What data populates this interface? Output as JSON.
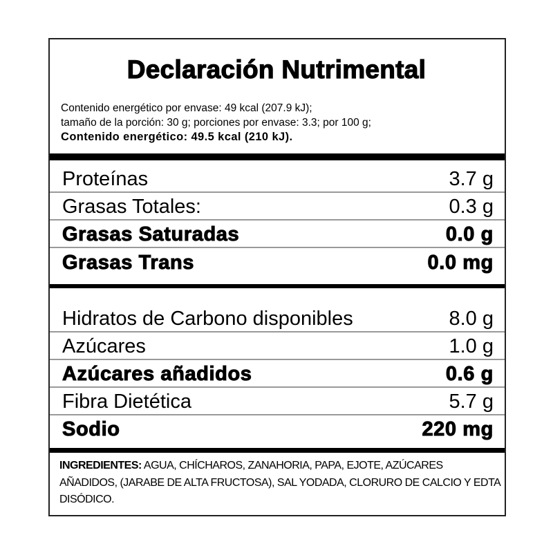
{
  "title": "Declaración Nutrimental",
  "info": {
    "line1": "Contenido energético por envase: 49 kcal (207.9 kJ);",
    "line2": "tamaño de la porción: 30 g; porciones por envase: 3.3; por 100 g;",
    "line3": "Contenido energético: 49.5 kcal (210 kJ)."
  },
  "section1": [
    {
      "label": "Proteínas",
      "value": "3.7 g",
      "bold": false
    },
    {
      "label": "Grasas Totales:",
      "value": "0.3 g",
      "bold": false
    },
    {
      "label": "Grasas Saturadas",
      "value": "0.0 g",
      "bold": true
    },
    {
      "label": "Grasas Trans",
      "value": "0.0 mg",
      "bold": true
    }
  ],
  "section2": [
    {
      "label": "Hidratos de Carbono disponibles",
      "value": "8.0 g",
      "bold": false
    },
    {
      "label": "Azúcares",
      "value": "1.0 g",
      "bold": false
    },
    {
      "label": "Azúcares añadidos",
      "value": "0.6 g",
      "bold": true
    },
    {
      "label": "Fibra Dietética",
      "value": "5.7 g",
      "bold": false
    },
    {
      "label": "Sodio",
      "value": "220 mg",
      "bold": true
    }
  ],
  "ingredients": {
    "heading": "INGREDIENTES:",
    "text": " AGUA, CHÍCHAROS, ZANAHORIA, PAPA, EJOTE, AZÚCARES AÑADIDOS, (JARABE DE ALTA FRUCTOSA), SAL YODADA, CLORURO DE CALCIO Y EDTA DISÓDICO."
  }
}
